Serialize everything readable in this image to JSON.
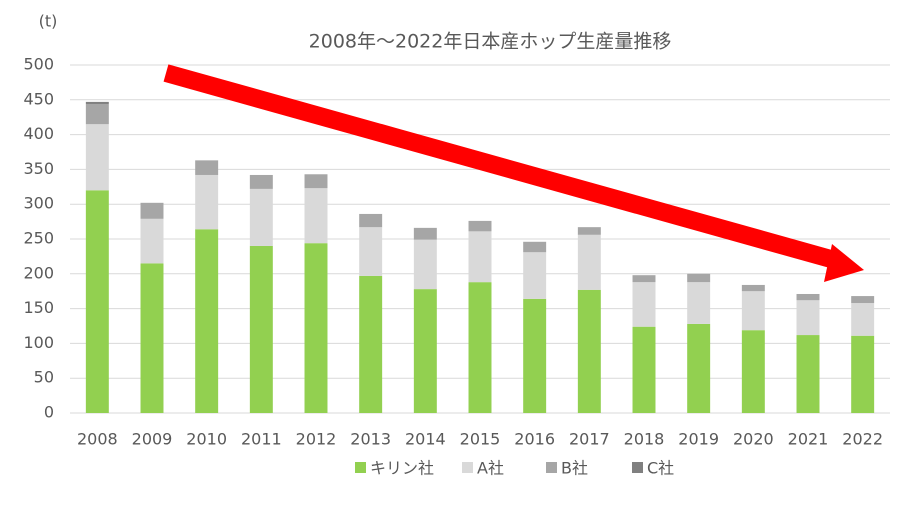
{
  "chart_data": {
    "type": "stacked_bar",
    "title": "2008年～2022年日本産ホップ生産量推移",
    "y_unit": "(t)",
    "categories": [
      "2008",
      "2009",
      "2010",
      "2011",
      "2012",
      "2013",
      "2014",
      "2015",
      "2016",
      "2017",
      "2018",
      "2019",
      "2020",
      "2021",
      "2022"
    ],
    "series": [
      {
        "name": "キリン社",
        "color": "#92d050",
        "values": [
          320,
          215,
          264,
          240,
          244,
          197,
          178,
          188,
          164,
          177,
          124,
          128,
          119,
          112,
          111
        ]
      },
      {
        "name": "A社",
        "color": "#d9d9d9",
        "values": [
          95,
          64,
          78,
          82,
          79,
          70,
          71,
          73,
          67,
          79,
          64,
          60,
          56,
          50,
          47
        ]
      },
      {
        "name": "B社",
        "color": "#a6a6a6",
        "values": [
          29,
          23,
          21,
          20,
          20,
          19,
          17,
          15,
          15,
          11,
          10,
          12,
          9,
          9,
          10
        ]
      },
      {
        "name": "C社",
        "color": "#808080",
        "values": [
          3,
          0,
          0,
          0,
          0,
          0,
          0,
          0,
          0,
          0,
          0,
          0,
          0,
          0,
          0
        ]
      }
    ],
    "ylim": [
      0,
      500
    ],
    "yticks": [
      0,
      50,
      100,
      150,
      200,
      250,
      300,
      350,
      400,
      450,
      500
    ],
    "grid": true,
    "legend": "bottom"
  }
}
